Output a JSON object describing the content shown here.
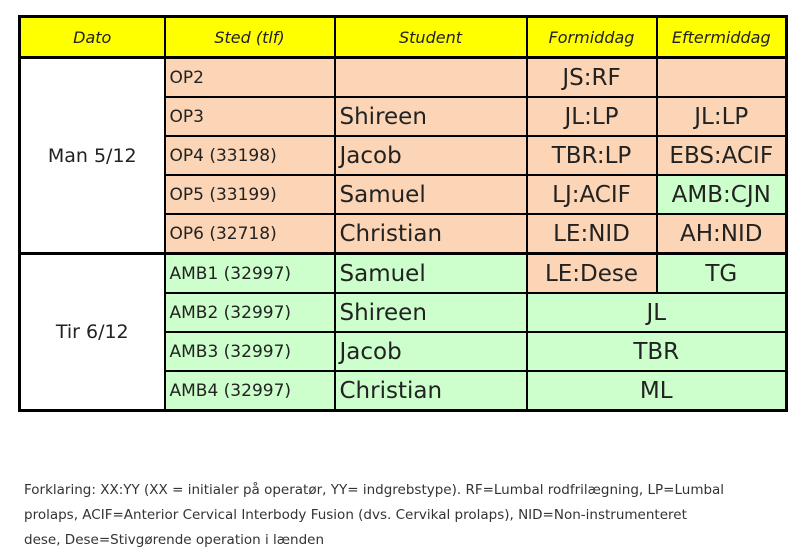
{
  "table": {
    "header": [
      "Dato",
      "Sted (tlf)",
      "Student",
      "Formiddag",
      "Eftermiddag"
    ],
    "groups": [
      {
        "date": "Man 5/12",
        "rows": [
          {
            "sted": "OP2",
            "formiddag": "JS:RF"
          },
          {
            "sted": "OP3",
            "student": "Shireen",
            "formiddag": "JL:LP",
            "eftermiddag": "JL:LP"
          },
          {
            "sted": "OP4 (33198)",
            "student": "Jacob",
            "formiddag": "TBR:LP",
            "eftermiddag": "EBS:ACIF"
          },
          {
            "sted": "OP5 (33199)",
            "student": "Samuel",
            "formiddag": "LJ:ACIF",
            "eftermiddag": "AMB:CJN"
          },
          {
            "sted": "OP6 (32718)",
            "student": "Christian",
            "formiddag": "LE:NID",
            "eftermiddag": "AH:NID"
          }
        ]
      },
      {
        "date": "Tir 6/12",
        "rows": [
          {
            "sted": "AMB1 (32997)",
            "student": "Samuel",
            "formiddag": "LE:Dese",
            "eftermiddag": "TG"
          },
          {
            "sted": "AMB2 (32997)",
            "student": "Shireen",
            "hele_dagen": "JL"
          },
          {
            "sted": "AMB3 (32997)",
            "student": "Jacob",
            "hele_dagen": "TBR"
          },
          {
            "sted": "AMB4 (32997)",
            "student": "Christian",
            "hele_dagen": "ML"
          }
        ]
      }
    ]
  },
  "footer": {
    "lines": [
      "Forklaring: XX:YY (XX = initialer på operatør, YY= indgrebstype). RF=Lumbal rodfrilægning, LP=Lumbal",
      "prolaps, ACIF=Anterior Cervical Interbody Fusion (dvs. Cervikal prolaps), NID=Non-instrumenteret",
      "dese, Dese=Stivgørende operation i lænden"
    ]
  }
}
